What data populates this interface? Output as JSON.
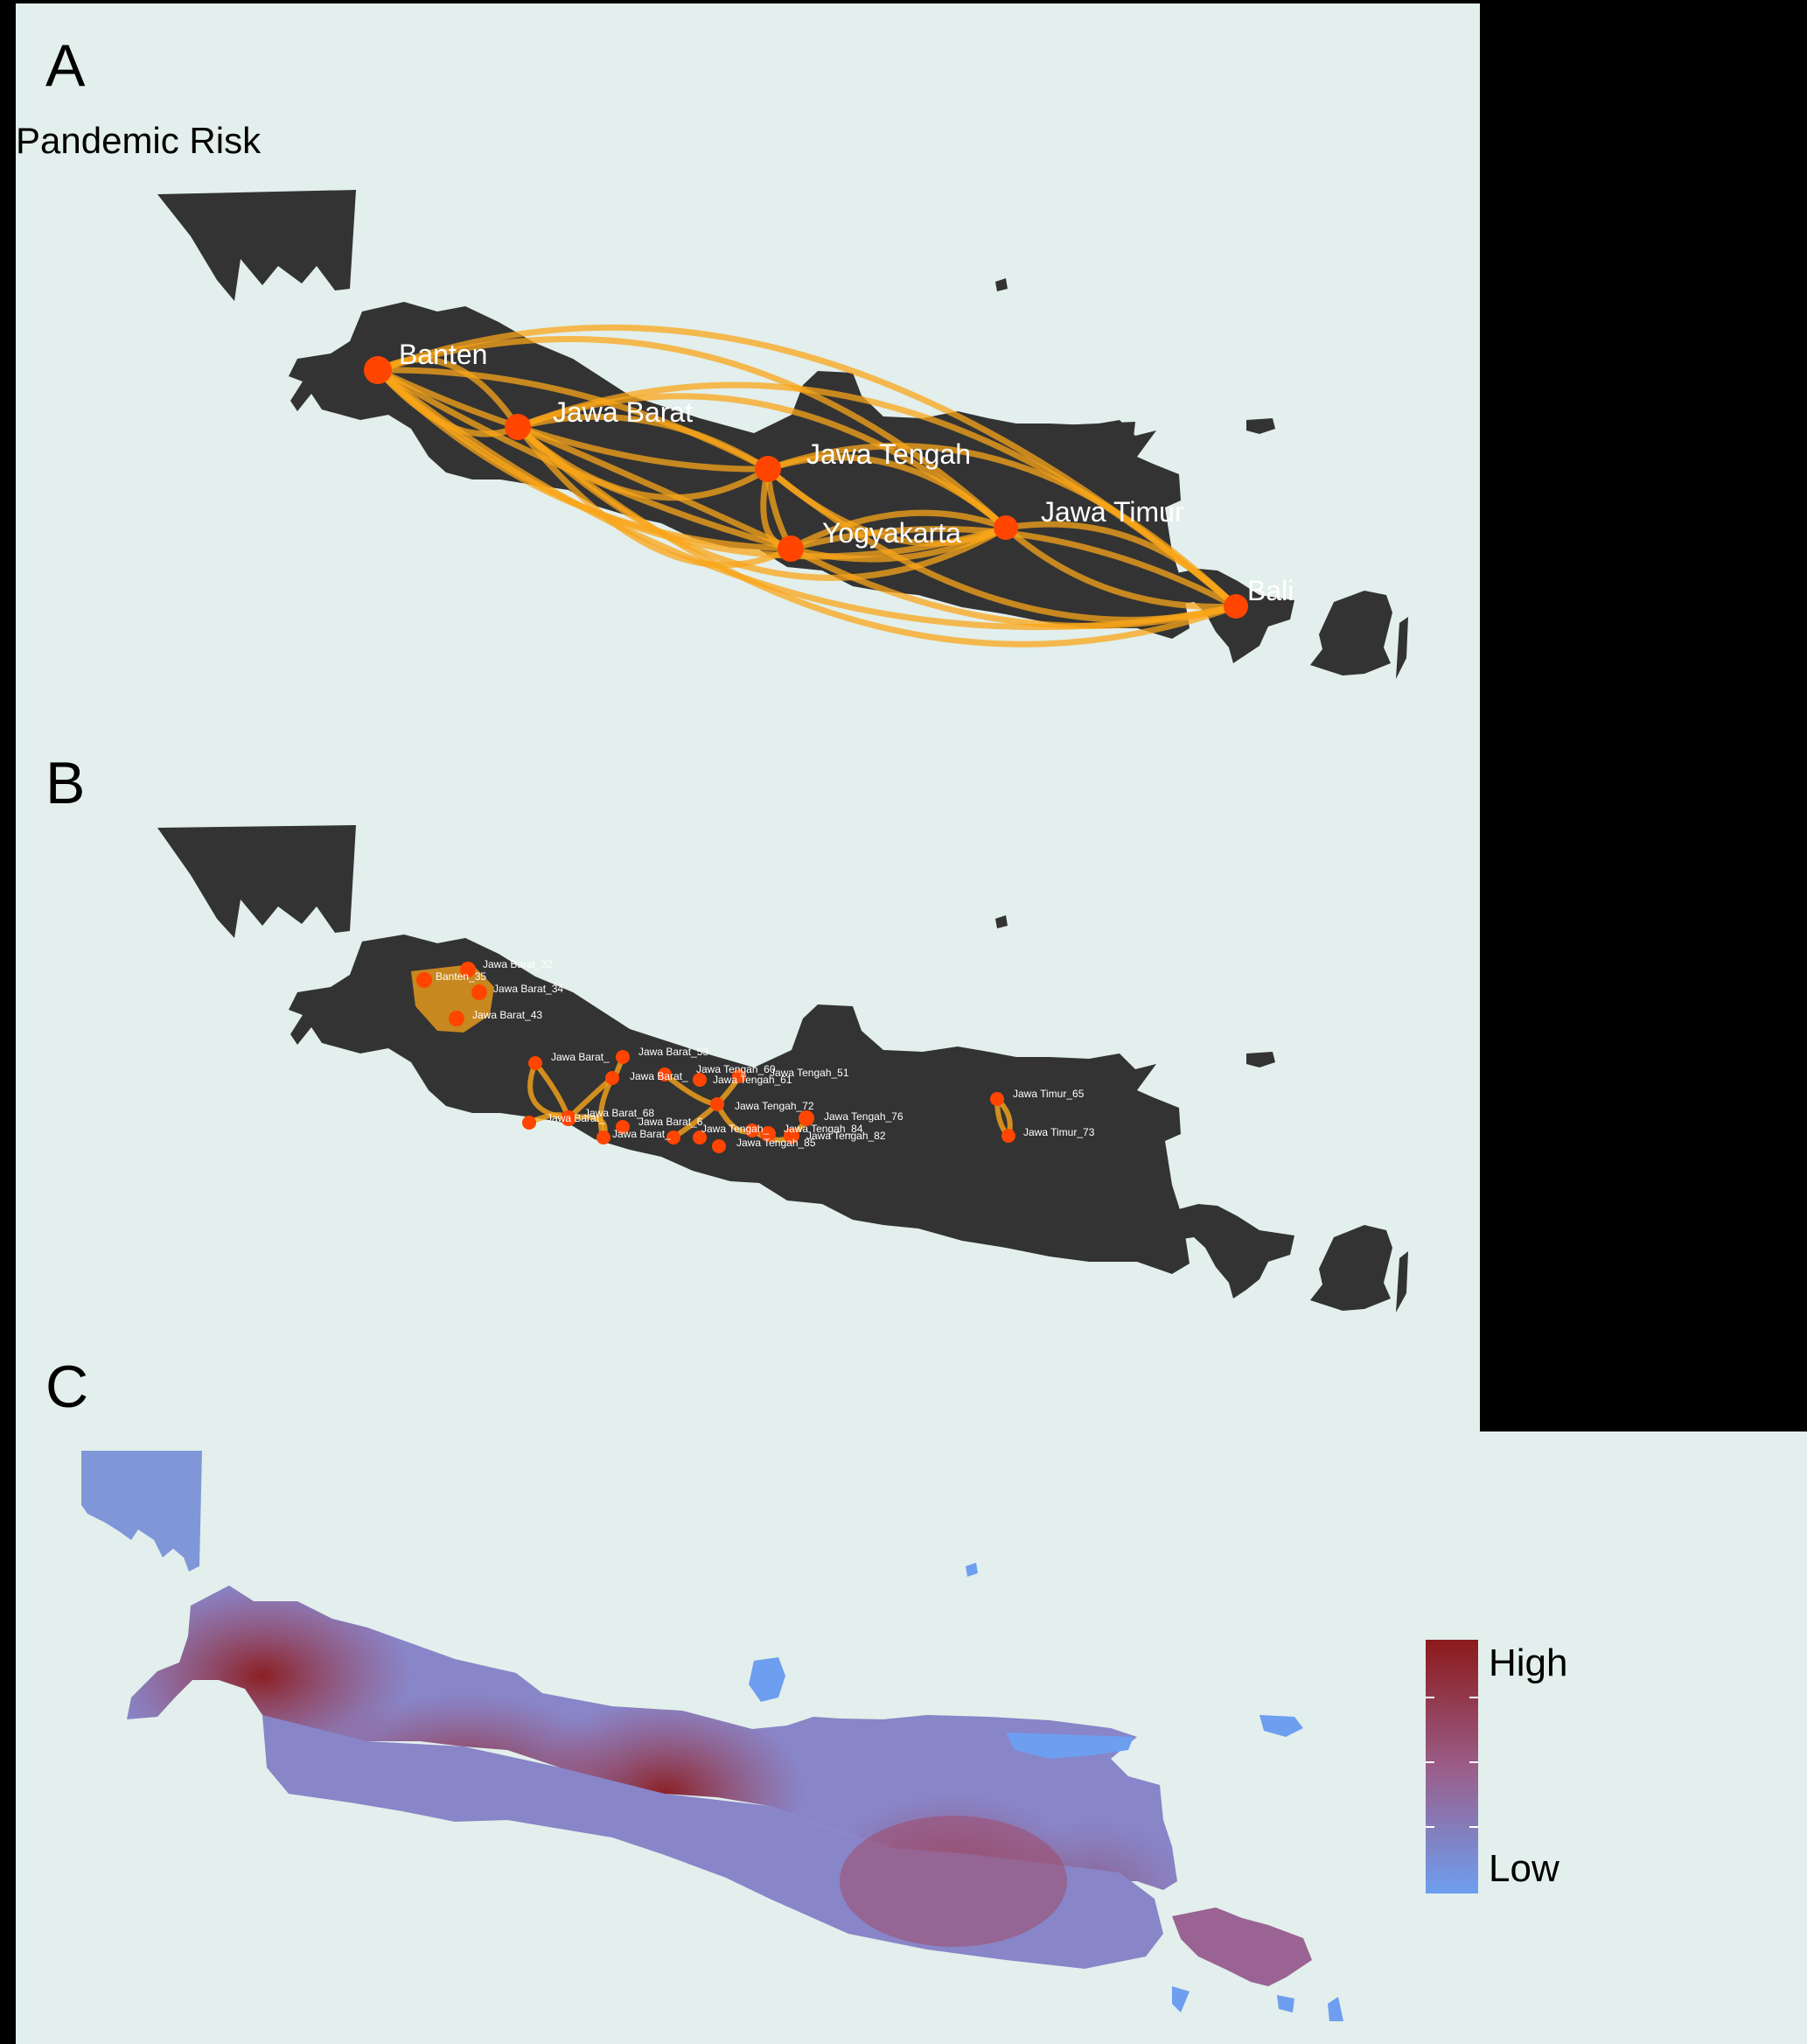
{
  "panels": {
    "a": {
      "letter": "A",
      "title": "Pandemic Risk"
    },
    "b": {
      "letter": "B"
    },
    "c": {
      "letter": "C"
    }
  },
  "provinces": [
    {
      "id": "banten",
      "label": "Banten"
    },
    {
      "id": "jawa-barat",
      "label": "Jawa Barat"
    },
    {
      "id": "jawa-tengah",
      "label": "Jawa Tengah"
    },
    {
      "id": "yogyakarta",
      "label": "Yogyakarta"
    },
    {
      "id": "jawa-timur",
      "label": "Jawa Timur"
    },
    {
      "id": "bali",
      "label": "Bali"
    }
  ],
  "regencies": [
    {
      "id": "b-35",
      "label": "Banten_35"
    },
    {
      "id": "jb-32",
      "label": "Jawa Barat_32"
    },
    {
      "id": "jb-34",
      "label": "Jawa Barat_34"
    },
    {
      "id": "jb-43",
      "label": "Jawa Barat_43"
    },
    {
      "id": "jb-a",
      "label": "Jawa Barat_"
    },
    {
      "id": "jb-b",
      "label": "Jawa Barat_53"
    },
    {
      "id": "jb-c",
      "label": "Jawa Barat_"
    },
    {
      "id": "jt-a",
      "label": "Jawa Tengah_60"
    },
    {
      "id": "jt-b",
      "label": "Jawa Tengah_61"
    },
    {
      "id": "jt-51",
      "label": "Jawa Tengah_51"
    },
    {
      "id": "jb-68",
      "label": "Jawa Barat_68"
    },
    {
      "id": "jb-d",
      "label": "Jawa Barat_"
    },
    {
      "id": "jb-e",
      "label": "Jawa Barat_6"
    },
    {
      "id": "jb-f",
      "label": "Jawa Barat_"
    },
    {
      "id": "jt-72",
      "label": "Jawa Tengah_72"
    },
    {
      "id": "jt-76",
      "label": "Jawa Tengah_76"
    },
    {
      "id": "jt-84",
      "label": "Jawa Tengah_84"
    },
    {
      "id": "jt-82",
      "label": "Jawa Tengah_82"
    },
    {
      "id": "jt-85",
      "label": "Jawa Tengah_85"
    },
    {
      "id": "jt-g",
      "label": "Jawa Tengah_"
    },
    {
      "id": "jtm-65",
      "label": "Jawa Timur_65"
    },
    {
      "id": "jtm-73",
      "label": "Jawa Timur_73"
    }
  ],
  "legend": {
    "high": "High",
    "low": "Low",
    "high_color": "#8b1a1a",
    "low_color": "#6e9ef0"
  },
  "colors": {
    "background": "#e2efec",
    "land": "#333333",
    "edge": "#f9a51a",
    "node": "#ff4500"
  }
}
